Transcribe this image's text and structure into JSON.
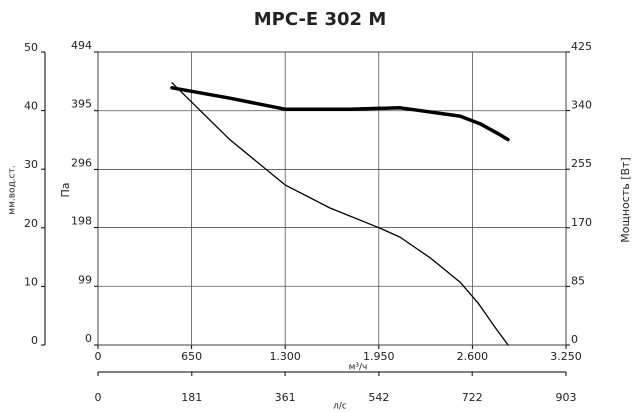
{
  "chart_data": {
    "type": "line",
    "title": "MPC-E 302 M",
    "xlabel": "м³/ч",
    "xlim": [
      0,
      3250
    ],
    "xticks": [
      0,
      650,
      {
        "value": 1300,
        "label": "1.300"
      },
      {
        "value": 1950,
        "label": "1.950"
      },
      {
        "value": 2600,
        "label": "2.600"
      },
      {
        "value": 3250,
        "label": "3.250"
      }
    ],
    "x2label": "л/с",
    "x2lim": [
      0,
      903
    ],
    "x2ticks": [
      0,
      181,
      361,
      542,
      722,
      903
    ],
    "ylabel": "Па",
    "ylim": [
      0,
      494
    ],
    "yticks": [
      0,
      99,
      198,
      296,
      395,
      494
    ],
    "y3label": "мм.вод.ст.",
    "y3lim": [
      0,
      50
    ],
    "y3ticks": [
      0,
      10,
      20,
      30,
      40,
      50
    ],
    "y2label": "Мощность [Вт]",
    "y2lim": [
      0,
      425
    ],
    "y2ticks": [
      0,
      85,
      170,
      255,
      340,
      425
    ],
    "grid": true,
    "series": [
      {
        "color": "#000000",
        "line_width": 1.3,
        "x": [
          514,
          917,
          1299,
          1611,
          1958,
          2097,
          2306,
          2514,
          2639,
          2757,
          2847
        ],
        "values": [
          442,
          346,
          270,
          231,
          197,
          182,
          147,
          106,
          71,
          30,
          0
        ]
      },
      {
        "color": "#000000",
        "line_width": 3.5,
        "axis": "y2",
        "x": [
          514,
          917,
          1299,
          1750,
          2097,
          2514,
          2653,
          2792,
          2847
        ],
        "values": [
          373,
          358,
          342,
          342,
          344,
          332,
          321,
          305,
          298
        ]
      }
    ]
  }
}
